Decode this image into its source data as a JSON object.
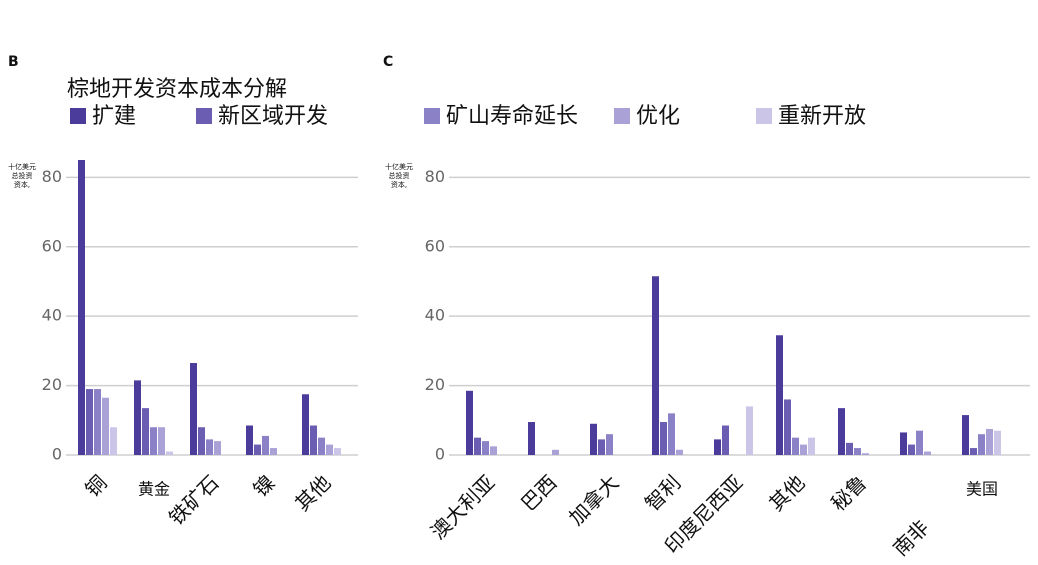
{
  "header": {
    "title": "棕地开发资本成本分解"
  },
  "chart_data": [
    {
      "type": "bar",
      "panel": "B",
      "y_label": [
        "十亿美元",
        "总投资",
        "资本,"
      ],
      "categories": [
        "铜",
        "黄金",
        "铁矿石",
        "镍",
        "其他"
      ],
      "series": [
        {
          "name": "扩建",
          "color": "#4b3b9b",
          "values": [
            85,
            21.5,
            26.5,
            8.5,
            17.5
          ]
        },
        {
          "name": "新区域开发",
          "color": "#6a5db2",
          "values": [
            19,
            13.5,
            8,
            3,
            8.5
          ]
        },
        {
          "name": "矿山寿命延长",
          "color": "#8b81c6",
          "values": [
            19,
            8,
            4.5,
            5.5,
            5
          ]
        },
        {
          "name": "优化",
          "color": "#aaa2d6",
          "values": [
            16.5,
            8,
            4,
            2,
            3
          ]
        },
        {
          "name": "重新开放",
          "color": "#cbc5e8",
          "values": [
            8,
            1,
            0,
            0,
            2
          ]
        }
      ],
      "ylim": [
        0,
        85
      ],
      "yticks": [
        0,
        20,
        40,
        60,
        80
      ],
      "grid": true
    },
    {
      "type": "bar",
      "panel": "C",
      "y_label": [
        "十亿美元",
        "总投资",
        "资本,"
      ],
      "categories": [
        "澳大利亚",
        "巴西",
        "加拿大",
        "智利",
        "印度尼西亚",
        "其他",
        "秘鲁",
        "南非",
        "美国"
      ],
      "series": [
        {
          "color": "#4b3b9b",
          "values": [
            18.5,
            9.5,
            9,
            51.5,
            4.5,
            34.5,
            13.5,
            6.5,
            11.5
          ]
        },
        {
          "color": "#6a5db2",
          "values": [
            5,
            0,
            4.5,
            9.5,
            8.5,
            16,
            3.5,
            3,
            2
          ]
        },
        {
          "color": "#8b81c6",
          "values": [
            4,
            0,
            6,
            12,
            0,
            5,
            2,
            7,
            6
          ]
        },
        {
          "color": "#aaa2d6",
          "values": [
            2.5,
            1.5,
            0,
            1.5,
            0,
            3,
            0.5,
            1,
            7.5
          ]
        },
        {
          "color": "#cbc5e8",
          "values": [
            0,
            0,
            0,
            0,
            14,
            5,
            0,
            0,
            7
          ]
        }
      ],
      "ylim": [
        0,
        85
      ],
      "yticks": [
        0,
        20,
        40,
        60,
        80
      ],
      "grid": true
    }
  ]
}
